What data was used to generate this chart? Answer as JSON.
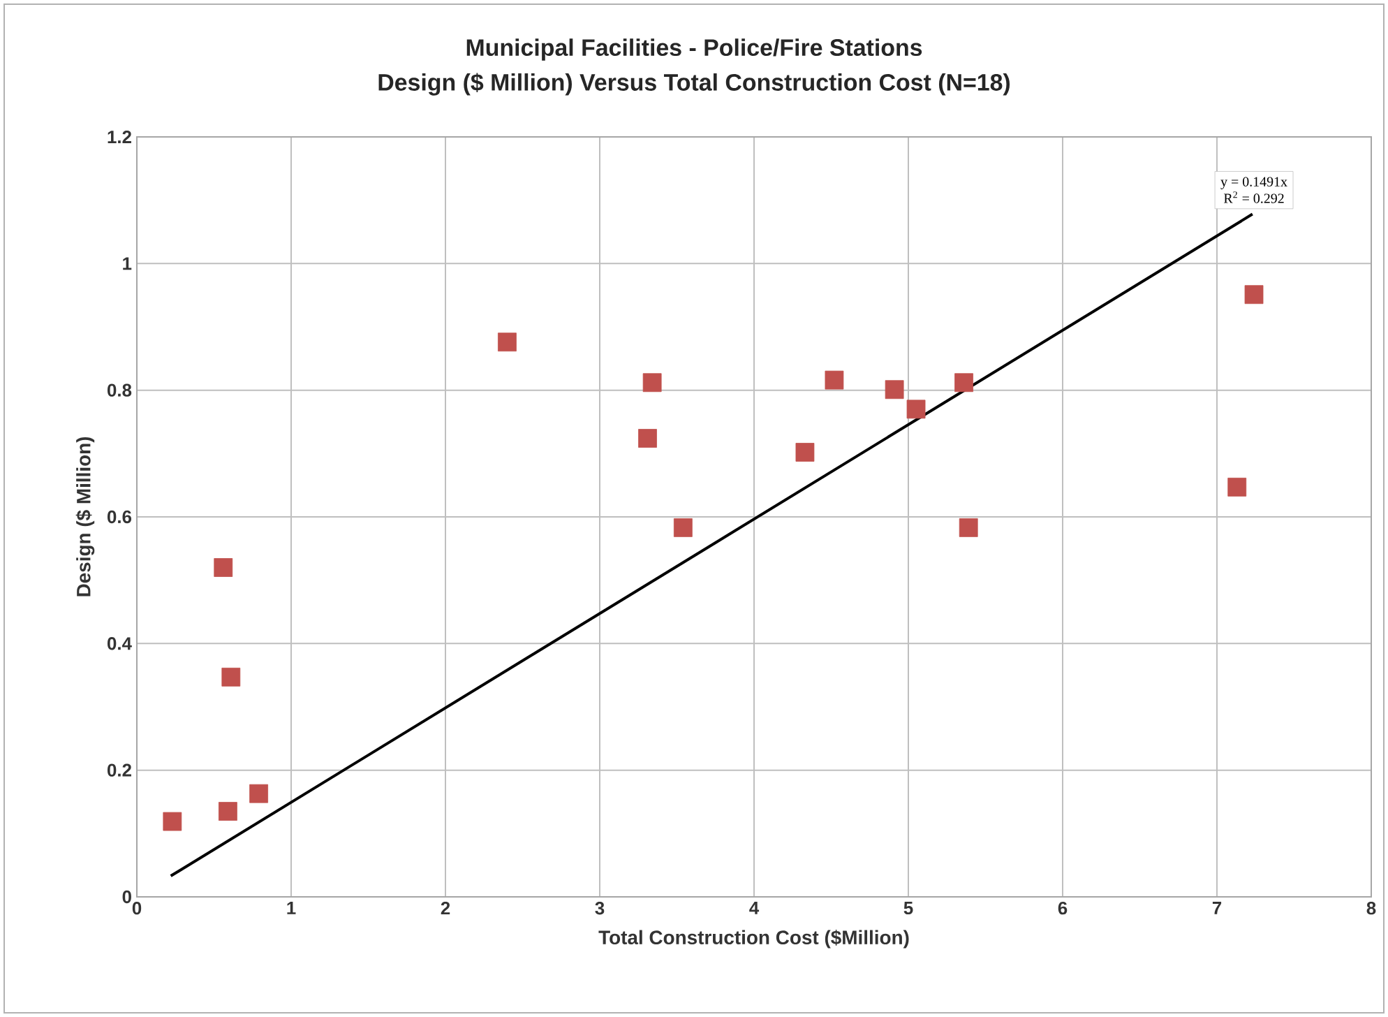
{
  "chart_data": {
    "type": "scatter",
    "title": "Municipal Facilities - Police/Fire Stations",
    "subtitle": "Design  ($ Million) Versus Total Construction Cost  (N=18)",
    "xlabel": "Total Construction Cost ($Million)",
    "ylabel": "Design  ($ Million)",
    "xlim": [
      0,
      8
    ],
    "xticks": [
      0,
      1,
      2,
      3,
      4,
      5,
      6,
      7,
      8
    ],
    "ylim": [
      0,
      1.2
    ],
    "yticks": [
      0,
      0.2,
      0.4,
      0.6,
      0.8,
      1,
      1.2
    ],
    "grid": true,
    "annotations": [
      "y = 0.1491x",
      "R$^{2}$ = 0.292"
    ],
    "series": [
      {
        "marker": "square",
        "color": "#c0504d",
        "x": [
          0.23,
          0.56,
          0.59,
          0.61,
          0.79,
          2.4,
          3.31,
          3.34,
          3.54,
          4.33,
          4.52,
          4.91,
          5.05,
          5.36,
          5.39,
          7.13,
          7.24
        ],
        "values": [
          0.119,
          0.52,
          0.135,
          0.347,
          0.163,
          0.876,
          0.724,
          0.812,
          0.583,
          0.702,
          0.816,
          0.801,
          0.77,
          0.812,
          0.583,
          0.647,
          0.951
        ]
      },
      {
        "type": "line",
        "marker": "none",
        "color": "#000000",
        "x": [
          0.22,
          7.23
        ],
        "values": [
          0.033,
          1.078
        ]
      }
    ]
  }
}
